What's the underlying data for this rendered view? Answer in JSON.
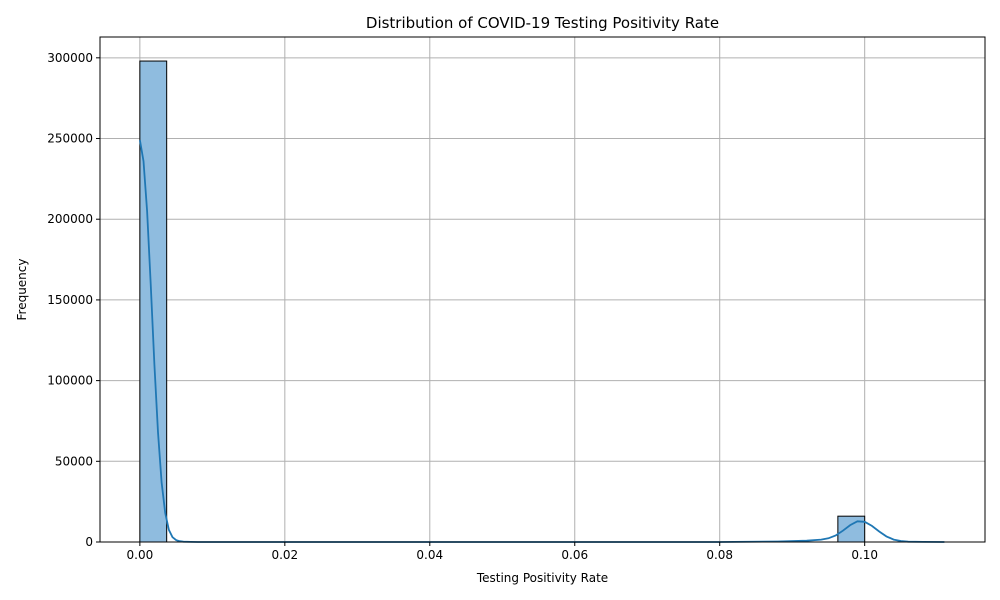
{
  "chart_data": {
    "type": "bar",
    "subtype": "histogram-with-kde",
    "title": "Distribution of COVID-19 Testing Positivity Rate",
    "xlabel": "Testing Positivity Rate",
    "ylabel": "Frequency",
    "xlim": [
      -0.0055,
      0.1166
    ],
    "ylim": [
      0,
      312900
    ],
    "x_ticks": [
      0.0,
      0.02,
      0.04,
      0.06,
      0.08,
      0.1
    ],
    "x_tick_labels": [
      "0.00",
      "0.02",
      "0.04",
      "0.06",
      "0.08",
      "0.10"
    ],
    "y_ticks": [
      0,
      50000,
      100000,
      150000,
      200000,
      250000,
      300000
    ],
    "y_tick_labels": [
      "0",
      "50000",
      "100000",
      "150000",
      "200000",
      "250000",
      "300000"
    ],
    "grid": true,
    "bin_width": 0.0037,
    "bins": [
      {
        "x0": 0.0,
        "x1": 0.0037,
        "count": 298000
      },
      {
        "x0": 0.0963,
        "x1": 0.1,
        "count": 16000
      }
    ],
    "kde": {
      "x": [
        0.0,
        0.0005,
        0.001,
        0.0015,
        0.002,
        0.0025,
        0.003,
        0.0035,
        0.004,
        0.0045,
        0.005,
        0.0055,
        0.006,
        0.007,
        0.008,
        0.01,
        0.02,
        0.04,
        0.06,
        0.08,
        0.088,
        0.092,
        0.094,
        0.095,
        0.096,
        0.097,
        0.098,
        0.099,
        0.1,
        0.101,
        0.102,
        0.103,
        0.104,
        0.105,
        0.106,
        0.108,
        0.111
      ],
      "y": [
        249000,
        236000,
        205000,
        160000,
        110000,
        68000,
        37000,
        18000,
        7500,
        3000,
        1200,
        500,
        200,
        50,
        10,
        0,
        0,
        0,
        0,
        0,
        300,
        800,
        1500,
        2300,
        4000,
        7000,
        10500,
        12800,
        12500,
        10000,
        6500,
        3500,
        1500,
        600,
        200,
        40,
        0
      ]
    },
    "colors": {
      "bar_fill": "#8fbcdf",
      "bar_edge": "#000000",
      "kde_line": "#1f77b4",
      "grid": "#b0b0b0"
    }
  }
}
